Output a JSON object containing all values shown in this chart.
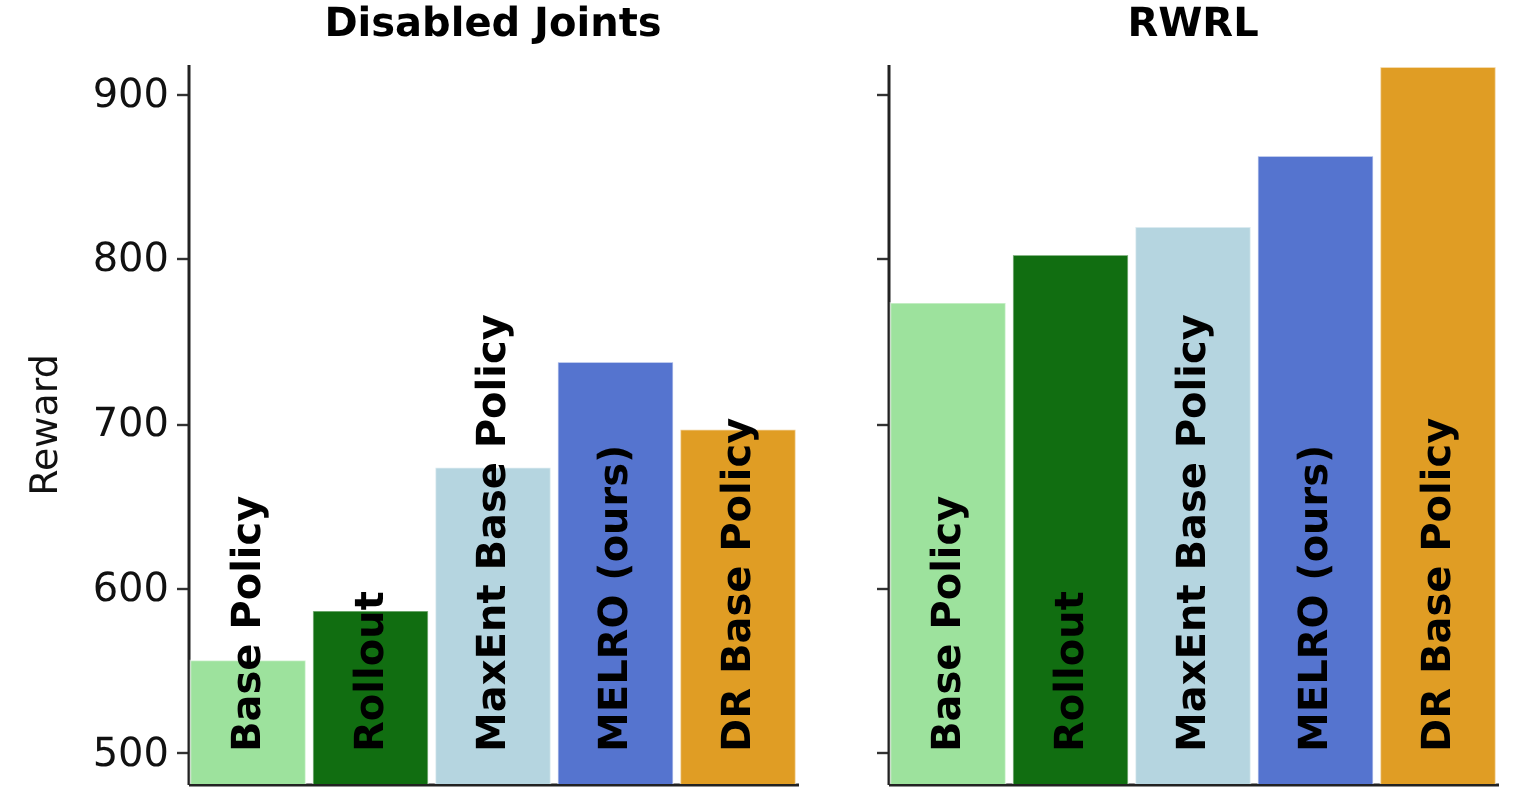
{
  "chart_data": [
    {
      "type": "bar",
      "title": "Disabled Joints",
      "ylabel": "Reward",
      "categories": [
        "Base Policy",
        "Rollout",
        "MaxEnt Base Policy",
        "MELRO (ours)",
        "DR Base Policy"
      ],
      "values": [
        556,
        586,
        673,
        737,
        696
      ],
      "colors": [
        "#9de29d",
        "#116e11",
        "#b5d5e0",
        "#5574cf",
        "#e09d24"
      ],
      "ylim": [
        481,
        918
      ],
      "yticks": [
        500,
        600,
        700,
        800,
        900
      ],
      "tick_labels": "y"
    },
    {
      "type": "bar",
      "title": "RWRL",
      "categories": [
        "Base Policy",
        "Rollout",
        "MaxEnt Base Policy",
        "MELRO (ours)",
        "DR Base Policy"
      ],
      "values": [
        773,
        802,
        819,
        862,
        916
      ],
      "colors": [
        "#9de29d",
        "#116e11",
        "#b5d5e0",
        "#5574cf",
        "#e09d24"
      ],
      "ylim": [
        481,
        918
      ],
      "yticks": [
        500,
        600,
        700,
        800,
        900
      ],
      "tick_labels": false
    }
  ]
}
